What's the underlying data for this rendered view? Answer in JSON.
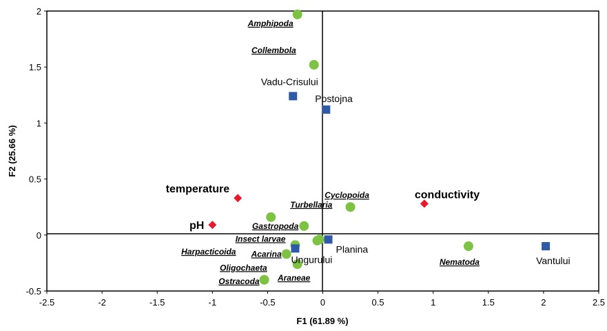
{
  "chart_data": {
    "type": "scatter",
    "title": "",
    "xlabel": "F1 (61.89 %)",
    "ylabel": "F2 (25.66 %)",
    "xlim": [
      -2.5,
      2.5
    ],
    "ylim": [
      -0.5,
      2
    ],
    "xticks": [
      -2.5,
      -2,
      -1.5,
      -1,
      -0.5,
      0,
      0.5,
      1,
      1.5,
      2,
      2.5
    ],
    "yticks": [
      -0.5,
      0,
      0.5,
      1,
      1.5,
      2
    ],
    "xtick_labels": [
      "-2.5",
      "-2",
      "-1.5",
      "-1",
      "-0.5",
      "0",
      "0.5",
      "1",
      "1.5",
      "2",
      "2.5"
    ],
    "ytick_labels": [
      "-0.5",
      "0",
      "0.5",
      "1",
      "1.5",
      "2"
    ],
    "grid": false,
    "legend": "none",
    "series": [
      {
        "marker": "circle",
        "color": "#7dc242",
        "points": [
          {
            "label": "Amphipoda",
            "x": -0.23,
            "y": 1.97
          },
          {
            "label": "Collembola",
            "x": -0.08,
            "y": 1.52
          },
          {
            "label": "Cyclopoida",
            "x": 0.25,
            "y": 0.25
          },
          {
            "label": "Turbellaria",
            "x": -0.47,
            "y": 0.16
          },
          {
            "label": "Gastropoda",
            "x": -0.17,
            "y": 0.08
          },
          {
            "label": "Insect larvae",
            "x": -0.25,
            "y": -0.09
          },
          {
            "label": "Harpacticoida",
            "x": -0.05,
            "y": -0.05
          },
          {
            "label": "Acarina",
            "x": -0.33,
            "y": -0.17
          },
          {
            "label": "Araneae",
            "x": -0.23,
            "y": -0.26
          },
          {
            "label": "Ostracoda",
            "x": -0.53,
            "y": -0.4
          },
          {
            "label": "Oligochaeta",
            "x": -0.03,
            "y": -0.04
          },
          {
            "label": "Nematoda",
            "x": 1.32,
            "y": -0.1
          }
        ]
      },
      {
        "marker": "square",
        "color": "#2e5aa8",
        "points": [
          {
            "label": "Vadu-Crisului",
            "x": -0.27,
            "y": 1.24
          },
          {
            "label": "Postojna",
            "x": 0.03,
            "y": 1.12
          },
          {
            "label": "Planina",
            "x": 0.05,
            "y": -0.04
          },
          {
            "label": "Ungurului",
            "x": -0.25,
            "y": -0.12
          },
          {
            "label": "Vantului",
            "x": 2.02,
            "y": -0.1
          }
        ]
      },
      {
        "marker": "diamond",
        "color": "#e8192c",
        "points": [
          {
            "label": "temperature",
            "x": -0.77,
            "y": 0.33
          },
          {
            "label": "pH",
            "x": -1.0,
            "y": 0.09
          },
          {
            "label": "conductivity",
            "x": 0.92,
            "y": 0.28
          }
        ]
      }
    ]
  }
}
